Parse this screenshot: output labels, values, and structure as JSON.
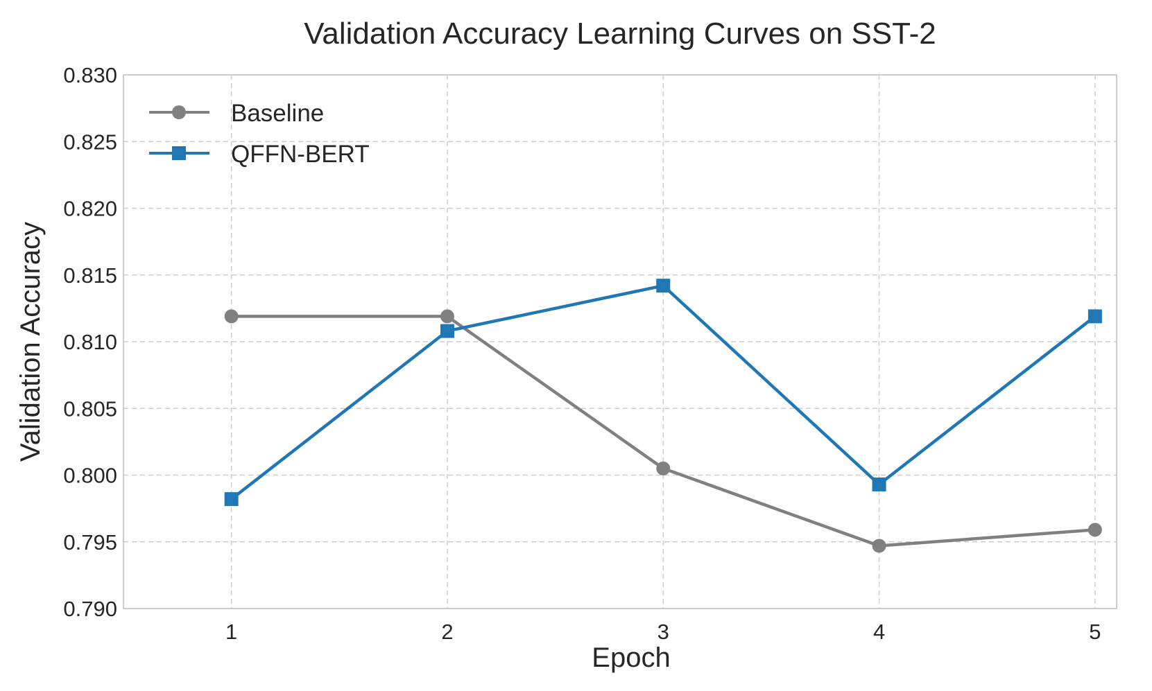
{
  "chart_data": {
    "type": "line",
    "title": "Validation Accuracy Learning Curves on SST-2",
    "xlabel": "Epoch",
    "ylabel": "Validation Accuracy",
    "x": [
      1,
      2,
      3,
      4,
      5
    ],
    "x_ticks": [
      "1",
      "2",
      "3",
      "4",
      "5"
    ],
    "xlim": [
      0.5,
      5.1
    ],
    "ylim": [
      0.79,
      0.83
    ],
    "y_ticks": [
      "0.790",
      "0.795",
      "0.800",
      "0.805",
      "0.810",
      "0.815",
      "0.820",
      "0.825",
      "0.830"
    ],
    "grid": true,
    "legend_position": "top-left",
    "series": [
      {
        "name": "Baseline",
        "color": "#808080",
        "marker": "circle",
        "values": [
          0.8119,
          0.8119,
          0.8005,
          0.7947,
          0.7959
        ]
      },
      {
        "name": "QFFN-BERT",
        "color": "#1f77b4",
        "marker": "square",
        "values": [
          0.7982,
          0.8108,
          0.8142,
          0.7993,
          0.8119
        ]
      }
    ]
  }
}
